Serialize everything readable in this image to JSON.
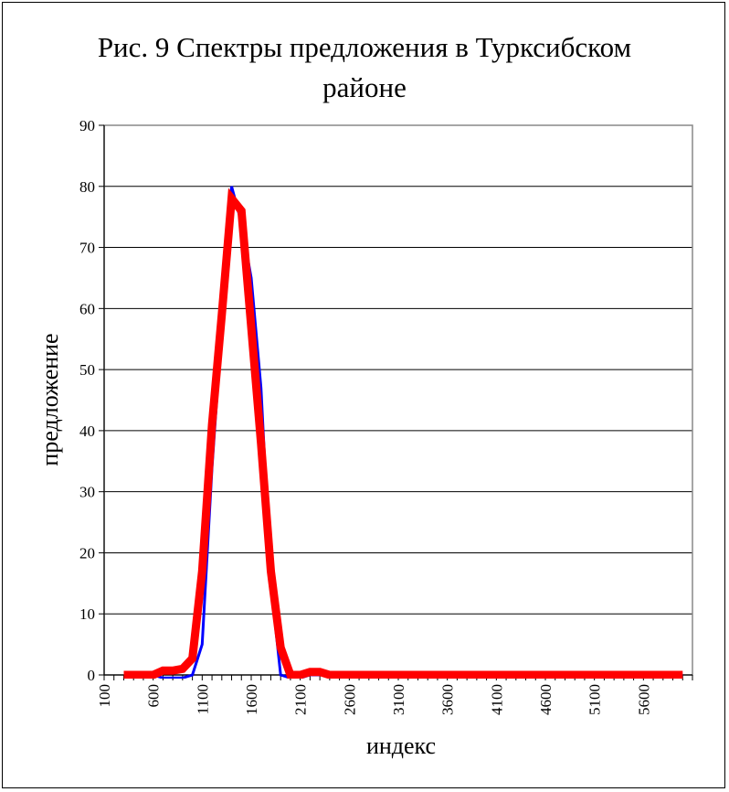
{
  "chart_data": {
    "type": "line",
    "title_line1": "Рис. 9 Спектры предложения в Турксибском",
    "title_line2": "районе",
    "xlabel": "индекс",
    "ylabel": "предложение",
    "xlim": [
      100,
      6100
    ],
    "ylim": [
      0,
      90
    ],
    "yticks": [
      0,
      10,
      20,
      30,
      40,
      50,
      60,
      70,
      80,
      90
    ],
    "xticks": [
      100,
      600,
      1100,
      1600,
      2100,
      2600,
      3100,
      3600,
      4100,
      4600,
      5100,
      5600
    ],
    "grid": "horizontal",
    "legend": "none",
    "series": [
      {
        "color": "#0000ff",
        "x": [
          300,
          400,
          500,
          600,
          700,
          800,
          900,
          1000,
          1100,
          1200,
          1300,
          1400,
          1500,
          1600,
          1700,
          1800,
          1900,
          2000,
          2100,
          2200,
          2300,
          2400,
          2500,
          6000
        ],
        "values": [
          0,
          0,
          0,
          0,
          -0.5,
          -0.5,
          -0.5,
          0,
          5,
          34,
          57,
          80,
          74,
          65,
          47,
          15,
          0,
          -0.5,
          -0.5,
          0,
          0,
          0,
          0,
          0
        ]
      },
      {
        "color": "#ff0000",
        "x": [
          300,
          400,
          500,
          600,
          700,
          800,
          900,
          1000,
          1100,
          1200,
          1300,
          1400,
          1500,
          1600,
          1700,
          1800,
          1900,
          2000,
          2100,
          2200,
          2300,
          2400,
          2500,
          6000
        ],
        "values": [
          0,
          0,
          0,
          0,
          0.7,
          0.7,
          1,
          2.7,
          17,
          41,
          59,
          78,
          76,
          57,
          38,
          17,
          4.5,
          0,
          0,
          0.5,
          0.5,
          0,
          0,
          0
        ]
      }
    ]
  }
}
